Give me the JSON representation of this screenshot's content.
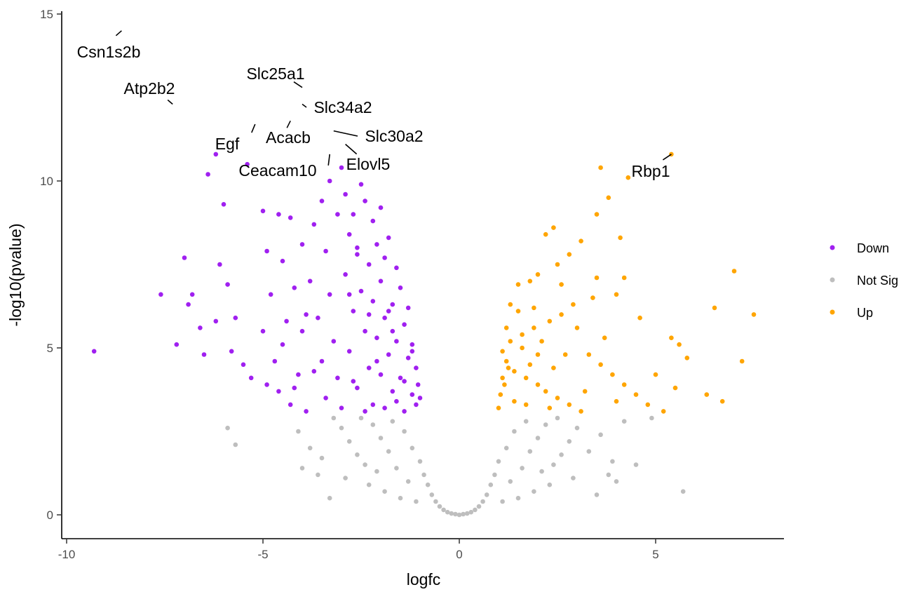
{
  "chart_data": {
    "type": "scatter",
    "title": "",
    "xlabel": "logfc",
    "ylabel": "-log10(pvalue)",
    "xlim": [
      -10.2,
      8.2
    ],
    "ylim": [
      -0.7,
      15.2
    ],
    "x_ticks": [
      -10,
      -5,
      0,
      5
    ],
    "x_tick_labels": [
      "-10",
      "-5",
      "0",
      "5"
    ],
    "y_ticks": [
      0,
      5,
      10,
      15
    ],
    "y_tick_labels": [
      "0",
      "5",
      "10",
      "15"
    ],
    "grid": false,
    "legend_position": "right",
    "thresholds": {
      "logfc": 1,
      "neg_log10_pvalue": 3
    },
    "colors": {
      "Down": "#A020F0",
      "Not Sig": "#BEBEBE",
      "Up": "#FFA500"
    },
    "legend": [
      {
        "name": "Down",
        "color": "#A020F0"
      },
      {
        "name": "Not Sig",
        "color": "#BEBEBE"
      },
      {
        "name": "Up",
        "color": "#FFA500"
      }
    ],
    "labeled_genes": [
      {
        "label": "Csn1s2b",
        "x": -8.6,
        "y": 14.5
      },
      {
        "label": "Atp2b2",
        "x": -7.3,
        "y": 12.3
      },
      {
        "label": "Slc25a1",
        "x": -4.0,
        "y": 12.8
      },
      {
        "label": "Slc34a2",
        "x": -4.0,
        "y": 12.3
      },
      {
        "label": "Egf",
        "x": -5.2,
        "y": 11.7
      },
      {
        "label": "Acacb",
        "x": -4.3,
        "y": 11.8
      },
      {
        "label": "Slc30a2",
        "x": -3.2,
        "y": 11.5
      },
      {
        "label": "Elovl5",
        "x": -2.9,
        "y": 11.1
      },
      {
        "label": "Ceacam10",
        "x": -3.3,
        "y": 10.8
      },
      {
        "label": "Rbp1",
        "x": 5.4,
        "y": 10.8
      }
    ],
    "series": [
      {
        "name": "Down",
        "points": [
          [
            -9.3,
            4.9
          ],
          [
            -7.6,
            6.6
          ],
          [
            -7.0,
            7.7
          ],
          [
            -6.8,
            6.6
          ],
          [
            -6.4,
            10.2
          ],
          [
            -6.2,
            10.8
          ],
          [
            -6.0,
            9.3
          ],
          [
            -6.1,
            7.5
          ],
          [
            -5.9,
            6.9
          ],
          [
            -5.7,
            5.9
          ],
          [
            -6.2,
            5.8
          ],
          [
            -5.5,
            4.5
          ],
          [
            -5.3,
            4.1
          ],
          [
            -6.5,
            4.8
          ],
          [
            -6.6,
            5.6
          ],
          [
            -6.9,
            6.3
          ],
          [
            -7.2,
            5.1
          ],
          [
            -5.8,
            4.9
          ],
          [
            -5.4,
            10.5
          ],
          [
            -5.0,
            9.1
          ],
          [
            -4.6,
            9.0
          ],
          [
            -4.3,
            8.9
          ],
          [
            -4.9,
            7.9
          ],
          [
            -4.5,
            7.6
          ],
          [
            -4.2,
            6.8
          ],
          [
            -4.8,
            6.6
          ],
          [
            -4.4,
            5.8
          ],
          [
            -4.0,
            5.5
          ],
          [
            -4.7,
            4.6
          ],
          [
            -4.1,
            4.2
          ],
          [
            -4.6,
            3.7
          ],
          [
            -4.3,
            3.3
          ],
          [
            -3.9,
            3.1
          ],
          [
            -3.5,
            9.4
          ],
          [
            -3.7,
            8.7
          ],
          [
            -3.4,
            7.9
          ],
          [
            -3.8,
            7.0
          ],
          [
            -3.3,
            6.6
          ],
          [
            -3.6,
            5.9
          ],
          [
            -3.2,
            5.2
          ],
          [
            -3.5,
            4.6
          ],
          [
            -3.1,
            4.1
          ],
          [
            -3.4,
            3.5
          ],
          [
            -3.0,
            3.2
          ],
          [
            -2.9,
            9.6
          ],
          [
            -2.7,
            9.0
          ],
          [
            -2.8,
            8.4
          ],
          [
            -2.6,
            7.8
          ],
          [
            -2.9,
            7.2
          ],
          [
            -2.5,
            6.7
          ],
          [
            -2.7,
            6.1
          ],
          [
            -2.4,
            5.5
          ],
          [
            -2.8,
            4.9
          ],
          [
            -2.3,
            4.4
          ],
          [
            -2.6,
            3.8
          ],
          [
            -2.2,
            3.3
          ],
          [
            -2.5,
            9.9
          ],
          [
            -2.4,
            9.4
          ],
          [
            -2.2,
            8.8
          ],
          [
            -2.1,
            8.1
          ],
          [
            -2.3,
            7.5
          ],
          [
            -2.0,
            7.0
          ],
          [
            -2.2,
            6.4
          ],
          [
            -1.9,
            5.9
          ],
          [
            -2.1,
            5.3
          ],
          [
            -1.8,
            4.8
          ],
          [
            -2.0,
            4.2
          ],
          [
            -1.7,
            3.7
          ],
          [
            -1.9,
            3.2
          ],
          [
            -1.6,
            7.4
          ],
          [
            -1.5,
            6.8
          ],
          [
            -1.7,
            6.3
          ],
          [
            -1.4,
            5.7
          ],
          [
            -1.6,
            5.2
          ],
          [
            -1.3,
            4.7
          ],
          [
            -1.5,
            4.1
          ],
          [
            -1.2,
            3.6
          ],
          [
            -1.4,
            3.1
          ],
          [
            -1.1,
            4.4
          ],
          [
            -1.2,
            5.1
          ],
          [
            -1.3,
            6.2
          ],
          [
            -1.8,
            8.3
          ],
          [
            -1.9,
            7.7
          ],
          [
            -1.1,
            3.3
          ],
          [
            -1.0,
            3.5
          ],
          [
            -1.05,
            3.9
          ],
          [
            -3.0,
            10.4
          ],
          [
            -3.3,
            10.0
          ],
          [
            -2.8,
            6.6
          ],
          [
            -4.5,
            5.1
          ],
          [
            -4.9,
            3.9
          ],
          [
            -4.0,
            8.1
          ],
          [
            -3.7,
            4.3
          ],
          [
            -2.4,
            3.1
          ],
          [
            -1.6,
            3.4
          ],
          [
            -1.8,
            6.1
          ],
          [
            -2.0,
            9.2
          ],
          [
            -2.6,
            8.0
          ],
          [
            -3.1,
            9.0
          ],
          [
            -3.9,
            6.0
          ],
          [
            -4.2,
            3.8
          ],
          [
            -5.0,
            5.5
          ],
          [
            -2.1,
            4.6
          ],
          [
            -1.7,
            5.5
          ],
          [
            -1.4,
            4.0
          ],
          [
            -1.2,
            4.9
          ],
          [
            -2.3,
            6.0
          ],
          [
            -2.7,
            4.0
          ]
        ]
      },
      {
        "name": "Up",
        "points": [
          [
            5.4,
            10.8
          ],
          [
            3.6,
            10.4
          ],
          [
            3.8,
            9.5
          ],
          [
            3.5,
            9.0
          ],
          [
            4.3,
            10.1
          ],
          [
            4.1,
            8.3
          ],
          [
            2.4,
            8.6
          ],
          [
            2.2,
            8.4
          ],
          [
            3.1,
            8.2
          ],
          [
            2.8,
            7.8
          ],
          [
            2.5,
            7.5
          ],
          [
            2.0,
            7.2
          ],
          [
            1.8,
            7.0
          ],
          [
            1.5,
            6.9
          ],
          [
            3.5,
            7.1
          ],
          [
            4.2,
            7.1
          ],
          [
            4.0,
            6.6
          ],
          [
            3.4,
            6.5
          ],
          [
            2.9,
            6.3
          ],
          [
            2.6,
            6.0
          ],
          [
            2.3,
            5.8
          ],
          [
            1.9,
            5.6
          ],
          [
            1.6,
            5.4
          ],
          [
            1.3,
            5.2
          ],
          [
            1.1,
            4.9
          ],
          [
            1.2,
            4.6
          ],
          [
            1.4,
            4.3
          ],
          [
            1.7,
            4.1
          ],
          [
            2.0,
            3.9
          ],
          [
            2.2,
            3.7
          ],
          [
            2.5,
            3.5
          ],
          [
            2.8,
            3.3
          ],
          [
            3.1,
            3.1
          ],
          [
            3.3,
            4.8
          ],
          [
            3.6,
            4.5
          ],
          [
            3.9,
            4.2
          ],
          [
            4.2,
            3.9
          ],
          [
            4.5,
            3.6
          ],
          [
            4.8,
            3.3
          ],
          [
            5.2,
            3.1
          ],
          [
            5.4,
            5.3
          ],
          [
            5.6,
            5.1
          ],
          [
            5.8,
            4.7
          ],
          [
            5.5,
            3.8
          ],
          [
            6.3,
            3.6
          ],
          [
            6.5,
            6.2
          ],
          [
            7.0,
            7.3
          ],
          [
            7.5,
            6.0
          ],
          [
            7.2,
            4.6
          ],
          [
            6.7,
            3.4
          ],
          [
            1.0,
            3.2
          ],
          [
            1.05,
            3.6
          ],
          [
            1.1,
            4.1
          ],
          [
            1.2,
            5.6
          ],
          [
            1.3,
            6.3
          ],
          [
            1.5,
            6.1
          ],
          [
            1.6,
            5.0
          ],
          [
            1.8,
            4.5
          ],
          [
            1.9,
            6.2
          ],
          [
            2.1,
            5.2
          ],
          [
            2.4,
            4.4
          ],
          [
            2.7,
            4.8
          ],
          [
            3.0,
            5.6
          ],
          [
            3.2,
            3.7
          ],
          [
            1.4,
            3.4
          ],
          [
            1.7,
            3.3
          ],
          [
            2.0,
            4.8
          ],
          [
            1.15,
            3.9
          ],
          [
            1.25,
            4.4
          ],
          [
            2.6,
            6.9
          ],
          [
            3.7,
            5.3
          ],
          [
            4.6,
            5.9
          ],
          [
            5.0,
            4.2
          ],
          [
            4.0,
            3.4
          ],
          [
            2.3,
            3.2
          ]
        ]
      },
      {
        "name": "Not Sig",
        "points": [
          [
            -5.9,
            2.6
          ],
          [
            -5.7,
            2.1
          ],
          [
            -3.2,
            2.9
          ],
          [
            -4.1,
            2.5
          ],
          [
            -3.8,
            2.0
          ],
          [
            -3.5,
            1.7
          ],
          [
            -3.0,
            2.6
          ],
          [
            -2.8,
            2.2
          ],
          [
            -2.6,
            1.8
          ],
          [
            -2.4,
            1.5
          ],
          [
            -2.2,
            2.7
          ],
          [
            -2.0,
            2.3
          ],
          [
            -1.8,
            1.9
          ],
          [
            -1.6,
            1.4
          ],
          [
            -1.4,
            2.5
          ],
          [
            -1.2,
            2.0
          ],
          [
            -1.0,
            1.6
          ],
          [
            -0.9,
            1.2
          ],
          [
            -0.8,
            0.9
          ],
          [
            -0.7,
            0.6
          ],
          [
            -0.6,
            0.4
          ],
          [
            -0.5,
            0.25
          ],
          [
            -0.4,
            0.15
          ],
          [
            -0.3,
            0.08
          ],
          [
            -0.2,
            0.04
          ],
          [
            -0.1,
            0.02
          ],
          [
            0.0,
            0.0
          ],
          [
            0.1,
            0.02
          ],
          [
            0.2,
            0.04
          ],
          [
            0.3,
            0.08
          ],
          [
            0.4,
            0.15
          ],
          [
            0.5,
            0.25
          ],
          [
            0.6,
            0.4
          ],
          [
            0.7,
            0.6
          ],
          [
            0.8,
            0.9
          ],
          [
            0.9,
            1.2
          ],
          [
            1.0,
            1.6
          ],
          [
            1.2,
            2.0
          ],
          [
            1.4,
            2.5
          ],
          [
            1.6,
            1.4
          ],
          [
            1.8,
            1.9
          ],
          [
            2.0,
            2.3
          ],
          [
            2.2,
            2.7
          ],
          [
            2.4,
            1.5
          ],
          [
            2.6,
            1.8
          ],
          [
            2.8,
            2.2
          ],
          [
            3.0,
            2.6
          ],
          [
            3.3,
            1.9
          ],
          [
            3.6,
            2.4
          ],
          [
            3.9,
            1.6
          ],
          [
            4.2,
            2.8
          ],
          [
            4.5,
            1.5
          ],
          [
            4.9,
            2.9
          ],
          [
            5.7,
            0.7
          ],
          [
            -3.3,
            0.5
          ],
          [
            -2.9,
            1.1
          ],
          [
            -2.3,
            0.9
          ],
          [
            -1.9,
            0.7
          ],
          [
            -1.5,
            0.5
          ],
          [
            -1.1,
            0.4
          ],
          [
            1.1,
            0.4
          ],
          [
            1.5,
            0.5
          ],
          [
            1.9,
            0.7
          ],
          [
            2.3,
            0.9
          ],
          [
            2.9,
            1.1
          ],
          [
            3.5,
            0.6
          ],
          [
            -2.5,
            2.9
          ],
          [
            -1.7,
            2.8
          ],
          [
            -1.3,
            1.0
          ],
          [
            1.3,
            1.0
          ],
          [
            1.7,
            2.8
          ],
          [
            2.5,
            2.9
          ],
          [
            -3.6,
            1.2
          ],
          [
            3.8,
            1.2
          ],
          [
            -4.0,
            1.4
          ],
          [
            4.0,
            1.0
          ],
          [
            -2.1,
            1.3
          ],
          [
            2.1,
            1.3
          ]
        ]
      }
    ]
  }
}
